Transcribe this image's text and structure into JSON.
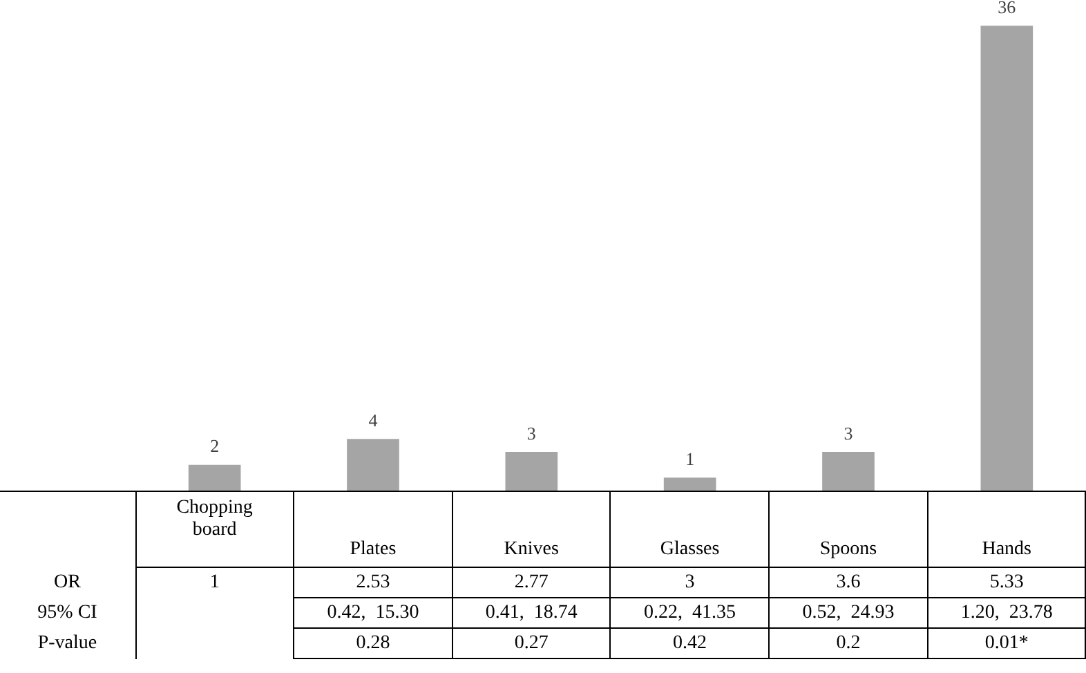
{
  "chart_data": {
    "type": "bar",
    "categories": [
      "Chopping board",
      "Plates",
      "Knives",
      "Glasses",
      "Spoons",
      "Hands"
    ],
    "values": [
      2,
      4,
      3,
      1,
      3,
      36
    ],
    "color": "#a5a5a5",
    "ylim": [
      0,
      38
    ],
    "data_labels": true,
    "annotations": [
      "OR",
      "1",
      "2.53",
      "2.77",
      "3",
      "3.6",
      "5.33",
      "95% CI",
      "0.42,  15.30",
      "0.41,  18.74",
      "0.22,  41.35",
      "0.52,  24.93",
      "1.20,  23.78",
      "P-value",
      "0.28",
      "0.27",
      "0.42",
      "0.2",
      "0.01*"
    ]
  }
}
